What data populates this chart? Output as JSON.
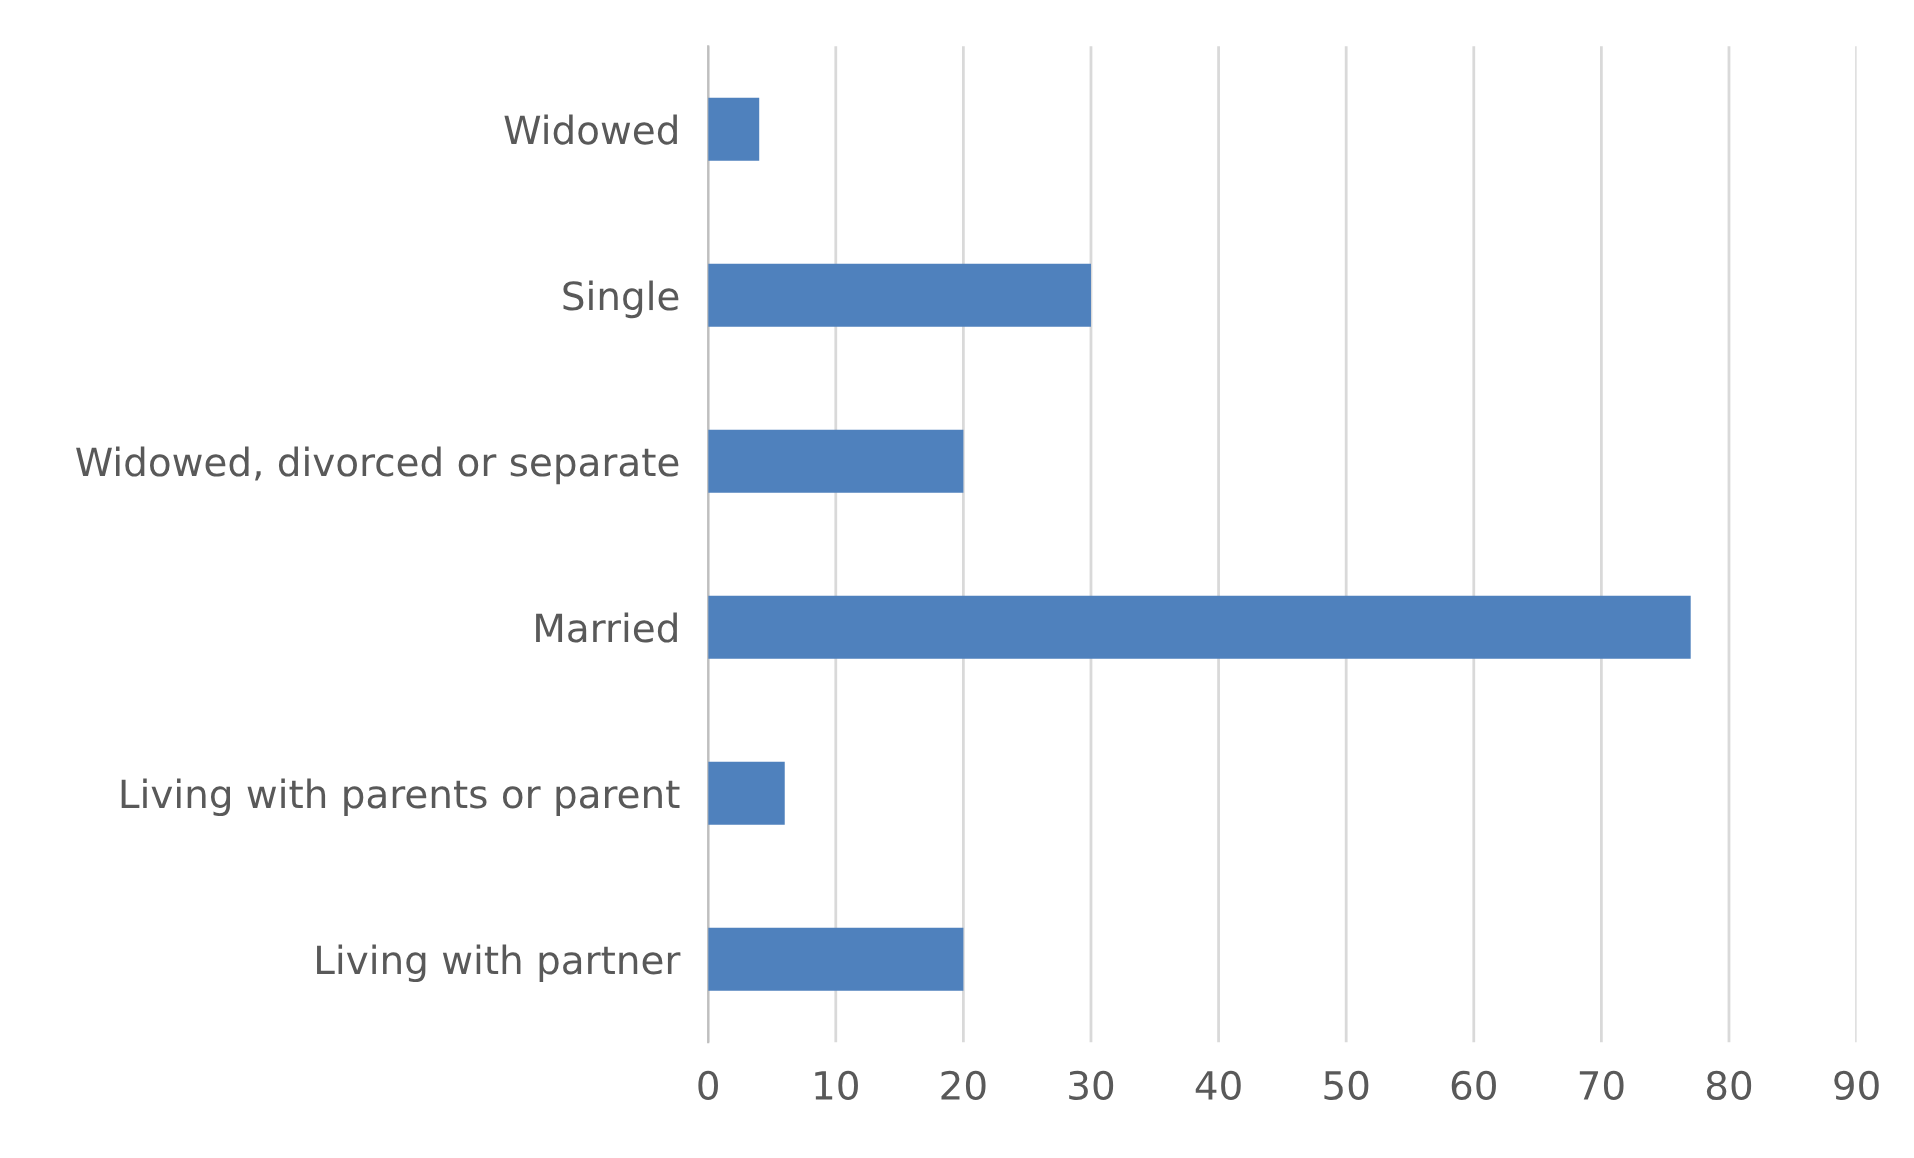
{
  "chart_data": {
    "type": "bar",
    "orientation": "horizontal",
    "categories": [
      "Widowed",
      "Single",
      "Widowed, divorced or separate",
      "Married",
      "Living with parents or parent",
      "Living with partner"
    ],
    "values": [
      4,
      30,
      20,
      77,
      6,
      20
    ],
    "color": "#4f81bd",
    "xlim": [
      0,
      90
    ],
    "xticks": [
      0,
      10,
      20,
      30,
      40,
      50,
      60,
      70,
      80,
      90
    ],
    "grid": "x",
    "legend": false
  }
}
